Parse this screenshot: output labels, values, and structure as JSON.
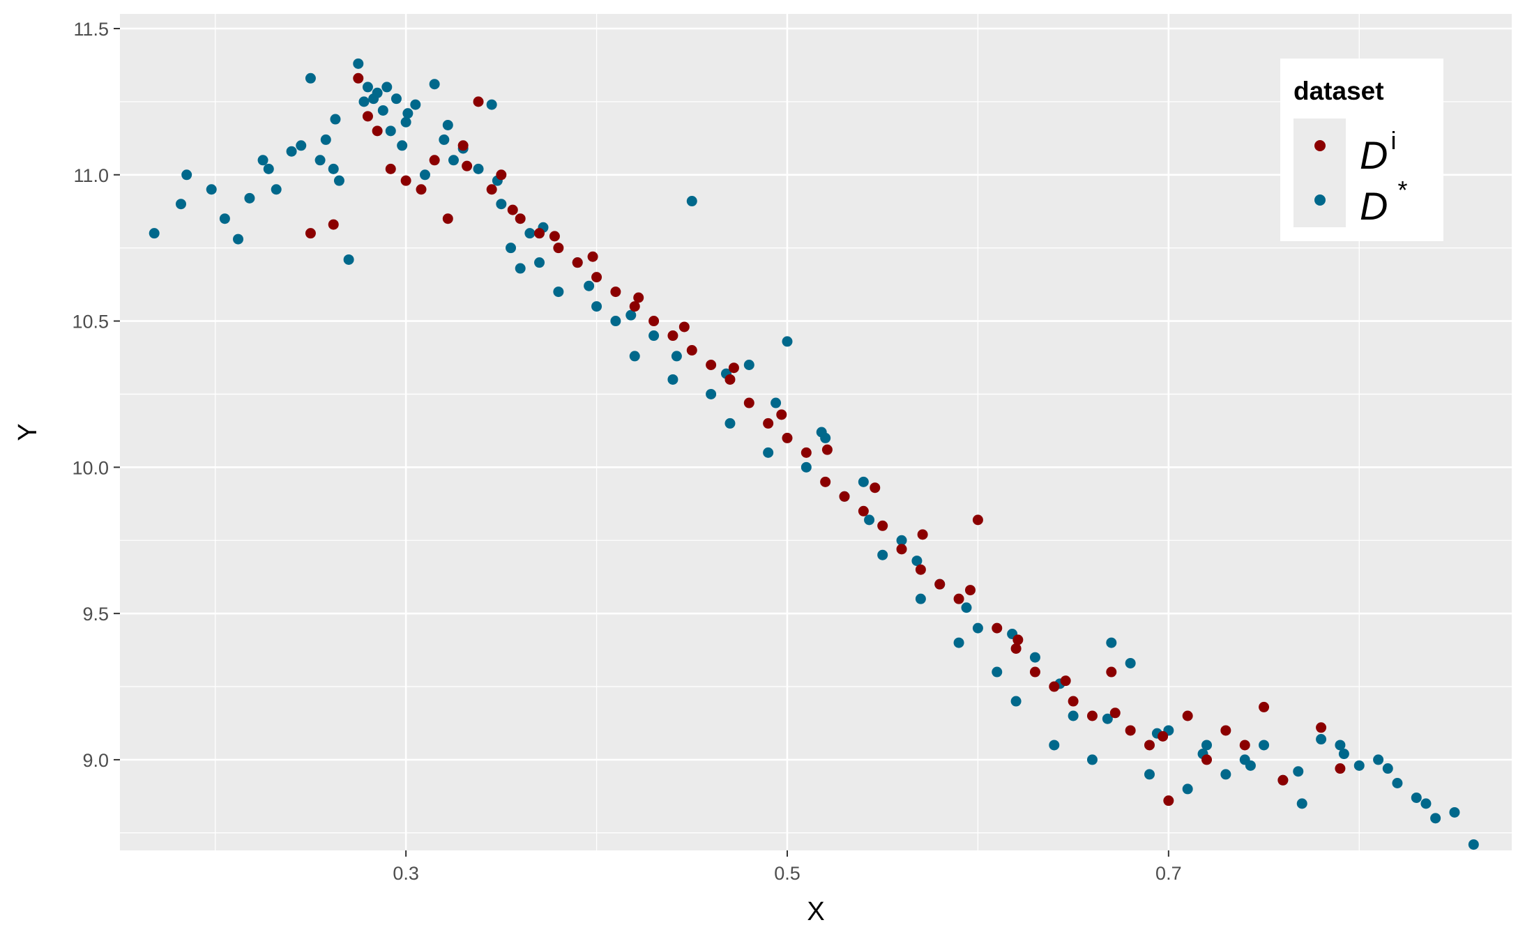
{
  "chart_data": {
    "type": "scatter",
    "title": "",
    "xlabel": "X",
    "ylabel": "Y",
    "xlim": [
      0.15,
      0.88
    ],
    "ylim": [
      8.69,
      11.55
    ],
    "x_ticks": [
      0.3,
      0.5,
      0.7
    ],
    "x_tick_labels": [
      "0.3",
      "0.5",
      "0.7"
    ],
    "x_minor_ticks": [
      0.2,
      0.4,
      0.6,
      0.8
    ],
    "y_ticks": [
      9.0,
      9.5,
      10.0,
      10.5,
      11.0,
      11.5
    ],
    "y_tick_labels": [
      "9.0",
      "9.5",
      "10.0",
      "10.5",
      "11.0",
      "11.5"
    ],
    "y_minor_ticks": [
      8.75,
      9.25,
      9.75,
      10.25,
      10.75,
      11.25
    ],
    "grid": true,
    "panel_background": "#ebebeb",
    "legend": {
      "title": "dataset",
      "placement": "top-right",
      "entries": [
        {
          "base": "D",
          "sup": "i",
          "color": "#8b0000"
        },
        {
          "base": "D",
          "sup": "*",
          "color": "#00688b"
        }
      ]
    },
    "series": [
      {
        "color": "#00688b",
        "x": [
          0.168,
          0.182,
          0.185,
          0.198,
          0.205,
          0.212,
          0.218,
          0.225,
          0.228,
          0.232,
          0.24,
          0.245,
          0.25,
          0.255,
          0.258,
          0.262,
          0.265,
          0.27,
          0.275,
          0.278,
          0.28,
          0.285,
          0.288,
          0.29,
          0.292,
          0.295,
          0.298,
          0.3,
          0.305,
          0.31,
          0.315,
          0.32,
          0.325,
          0.33,
          0.338,
          0.345,
          0.35,
          0.355,
          0.36,
          0.365,
          0.37,
          0.38,
          0.39,
          0.4,
          0.41,
          0.42,
          0.43,
          0.44,
          0.45,
          0.46,
          0.47,
          0.48,
          0.49,
          0.5,
          0.51,
          0.52,
          0.53,
          0.54,
          0.55,
          0.56,
          0.57,
          0.58,
          0.59,
          0.6,
          0.61,
          0.62,
          0.63,
          0.64,
          0.65,
          0.66,
          0.67,
          0.68,
          0.69,
          0.7,
          0.71,
          0.72,
          0.73,
          0.74,
          0.75,
          0.76,
          0.77,
          0.78,
          0.79,
          0.8,
          0.81,
          0.82,
          0.83,
          0.84,
          0.85,
          0.86,
          0.263,
          0.283,
          0.301,
          0.322,
          0.348,
          0.372,
          0.396,
          0.418,
          0.442,
          0.468,
          0.494,
          0.518,
          0.543,
          0.568,
          0.594,
          0.618,
          0.643,
          0.668,
          0.694,
          0.718,
          0.743,
          0.768,
          0.792,
          0.815,
          0.835
        ],
        "y": [
          10.8,
          10.9,
          11.0,
          10.95,
          10.85,
          10.78,
          10.92,
          11.05,
          11.02,
          10.95,
          11.08,
          11.1,
          11.33,
          11.05,
          11.12,
          11.02,
          10.98,
          10.71,
          11.38,
          11.25,
          11.3,
          11.28,
          11.22,
          11.3,
          11.15,
          11.26,
          11.1,
          11.18,
          11.24,
          11.0,
          11.31,
          11.12,
          11.05,
          11.09,
          11.02,
          11.24,
          10.9,
          10.75,
          10.68,
          10.8,
          10.7,
          10.6,
          10.7,
          10.55,
          10.5,
          10.38,
          10.45,
          10.3,
          10.91,
          10.25,
          10.15,
          10.35,
          10.05,
          10.43,
          10.0,
          10.1,
          9.9,
          9.95,
          9.7,
          9.75,
          9.55,
          9.6,
          9.4,
          9.45,
          9.3,
          9.2,
          9.35,
          9.05,
          9.15,
          9.0,
          9.4,
          9.33,
          8.95,
          9.1,
          8.9,
          9.05,
          8.95,
          9.0,
          9.05,
          8.93,
          8.85,
          9.07,
          9.05,
          8.98,
          9.0,
          8.92,
          8.87,
          8.8,
          8.82,
          8.71,
          11.19,
          11.26,
          11.21,
          11.17,
          10.98,
          10.82,
          10.62,
          10.52,
          10.38,
          10.32,
          10.22,
          10.12,
          9.82,
          9.68,
          9.52,
          9.43,
          9.26,
          9.14,
          9.09,
          9.02,
          8.98,
          8.96,
          9.02,
          8.97,
          8.85
        ]
      },
      {
        "color": "#8b0000",
        "x": [
          0.25,
          0.262,
          0.275,
          0.28,
          0.285,
          0.292,
          0.3,
          0.308,
          0.315,
          0.322,
          0.33,
          0.338,
          0.345,
          0.35,
          0.36,
          0.37,
          0.38,
          0.39,
          0.4,
          0.41,
          0.42,
          0.43,
          0.44,
          0.45,
          0.46,
          0.47,
          0.48,
          0.49,
          0.5,
          0.51,
          0.52,
          0.53,
          0.54,
          0.55,
          0.56,
          0.57,
          0.58,
          0.59,
          0.6,
          0.61,
          0.62,
          0.63,
          0.64,
          0.65,
          0.66,
          0.67,
          0.68,
          0.69,
          0.7,
          0.71,
          0.72,
          0.73,
          0.74,
          0.75,
          0.76,
          0.78,
          0.79,
          0.332,
          0.356,
          0.378,
          0.398,
          0.422,
          0.446,
          0.472,
          0.497,
          0.521,
          0.546,
          0.571,
          0.596,
          0.621,
          0.646,
          0.672,
          0.697
        ],
        "y": [
          10.8,
          10.83,
          11.33,
          11.2,
          11.15,
          11.02,
          10.98,
          10.95,
          11.05,
          10.85,
          11.1,
          11.25,
          10.95,
          11.0,
          10.85,
          10.8,
          10.75,
          10.7,
          10.65,
          10.6,
          10.55,
          10.5,
          10.45,
          10.4,
          10.35,
          10.3,
          10.22,
          10.15,
          10.1,
          10.05,
          9.95,
          9.9,
          9.85,
          9.8,
          9.72,
          9.65,
          9.6,
          9.55,
          9.82,
          9.45,
          9.38,
          9.3,
          9.25,
          9.2,
          9.15,
          9.3,
          9.1,
          9.05,
          8.86,
          9.15,
          9.0,
          9.1,
          9.05,
          9.18,
          8.93,
          9.11,
          8.97,
          11.03,
          10.88,
          10.79,
          10.72,
          10.58,
          10.48,
          10.34,
          10.18,
          10.06,
          9.93,
          9.77,
          9.58,
          9.41,
          9.27,
          9.16,
          9.08
        ]
      }
    ]
  }
}
